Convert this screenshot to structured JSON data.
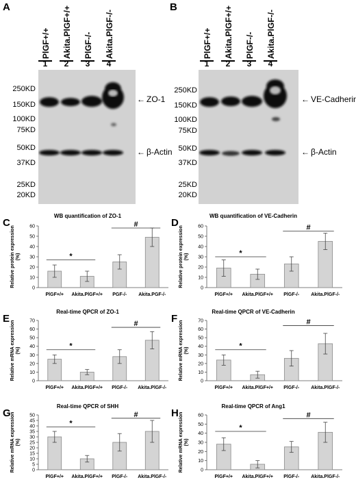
{
  "figure": {
    "blots": [
      {
        "letter": "A",
        "lanes": [
          {
            "num": "1",
            "label": "PlGF+/+"
          },
          {
            "num": "2",
            "label": "Akita.PlGF+/+"
          },
          {
            "num": "3",
            "label": "PlGF-/-"
          },
          {
            "num": "4",
            "label": "Akita.PlGF-/-"
          }
        ],
        "markers": [
          "250KD",
          "150KD",
          "100KD",
          "75KD",
          "50KD",
          "37KD",
          "25KD",
          "20KD"
        ],
        "band_labels": [
          "ZO-1",
          "β-Actin"
        ]
      },
      {
        "letter": "B",
        "lanes": [
          {
            "num": "1",
            "label": "PlGF+/+"
          },
          {
            "num": "2",
            "label": "Akita.PlGF+/+"
          },
          {
            "num": "3",
            "label": "PlGF-/-"
          },
          {
            "num": "4",
            "label": "Akita.PlGF-/-"
          }
        ],
        "markers": [
          "250KD",
          "150KD",
          "100KD",
          "75KD",
          "50KD",
          "37KD",
          "25KD",
          "20KD"
        ],
        "band_labels": [
          "VE-Cadherin",
          "β-Actin"
        ]
      }
    ]
  },
  "chart_data": [
    {
      "panel": "C",
      "type": "bar",
      "title": "WB quantification of ZO-1",
      "ylabel": "Relative protein expression (%)",
      "ylim": [
        0,
        60
      ],
      "yticks": [
        0,
        10,
        20,
        30,
        40,
        50,
        60
      ],
      "categories": [
        "PlGF+/+",
        "Akita.PlGF+/+",
        "PGF-/-",
        "Akita.PGF-/-"
      ],
      "values": [
        16,
        11,
        25,
        49
      ],
      "errors": [
        6,
        5,
        7,
        9
      ],
      "significance": [
        {
          "symbol": "*",
          "bars": [
            0,
            1
          ],
          "y": 27
        },
        {
          "symbol": "#",
          "bars": [
            2,
            3
          ],
          "y": 58
        }
      ]
    },
    {
      "panel": "D",
      "type": "bar",
      "title": "WB quantification of VE-Cadherin",
      "ylabel": "Relative protein expression (%)",
      "ylim": [
        0,
        60
      ],
      "yticks": [
        0,
        10,
        20,
        30,
        40,
        50,
        60
      ],
      "categories": [
        "PlGF+/+",
        "Akita.PlGF+/+",
        "PlGF-/-",
        "Akita.PlGF-/-"
      ],
      "values": [
        19,
        13,
        23,
        45
      ],
      "errors": [
        8,
        5,
        7,
        8
      ],
      "significance": [
        {
          "symbol": "*",
          "bars": [
            0,
            1
          ],
          "y": 30
        },
        {
          "symbol": "#",
          "bars": [
            2,
            3
          ],
          "y": 55
        }
      ]
    },
    {
      "panel": "E",
      "type": "bar",
      "title": "Real-time QPCR of ZO-1",
      "ylabel": "Relative mRNA expression (%)",
      "ylim": [
        0,
        70
      ],
      "yticks": [
        0,
        10,
        20,
        30,
        40,
        50,
        60,
        70
      ],
      "categories": [
        "PlGF+/+",
        "Akita.PlGF+/+",
        "PlGF-/-",
        "Akita.PlGF-/-"
      ],
      "values": [
        25,
        10,
        28,
        47
      ],
      "errors": [
        5,
        3,
        8,
        10
      ],
      "significance": [
        {
          "symbol": "*",
          "bars": [
            0,
            1
          ],
          "y": 36
        },
        {
          "symbol": "#",
          "bars": [
            2,
            3
          ],
          "y": 62
        }
      ]
    },
    {
      "panel": "F",
      "type": "bar",
      "title": "Real-time QPCR of VE-Cadherin",
      "ylabel": "Relative mRNA expression (%)",
      "ylim": [
        0,
        70
      ],
      "yticks": [
        0,
        10,
        20,
        30,
        40,
        50,
        60,
        70
      ],
      "categories": [
        "PlGF+/+",
        "Akita.PlGF+/+",
        "PlGF-/-",
        "Akita.PlGF-/-"
      ],
      "values": [
        24,
        7,
        26,
        43
      ],
      "errors": [
        6,
        4,
        9,
        12
      ],
      "significance": [
        {
          "symbol": "*",
          "bars": [
            0,
            1
          ],
          "y": 36
        },
        {
          "symbol": "#",
          "bars": [
            2,
            3
          ],
          "y": 64
        }
      ]
    },
    {
      "panel": "G",
      "type": "bar",
      "title": "Real-time QPCR of SHH",
      "ylabel": "Relative mRNA expression (%)",
      "ylim": [
        0,
        50
      ],
      "yticks": [
        0,
        5,
        10,
        15,
        20,
        25,
        30,
        35,
        40,
        45,
        50
      ],
      "categories": [
        "PlGF+/+",
        "Akita.PlGF+/+",
        "PlGF-/-",
        "Akita.PlGF-/-"
      ],
      "values": [
        30,
        10,
        25,
        35
      ],
      "errors": [
        5,
        3,
        8,
        10
      ],
      "significance": [
        {
          "symbol": "*",
          "bars": [
            0,
            1
          ],
          "y": 39
        },
        {
          "symbol": "#",
          "bars": [
            2,
            3
          ],
          "y": 47
        }
      ]
    },
    {
      "panel": "H",
      "type": "bar",
      "title": "Real-time QPCR of Ang1",
      "ylabel": "Relative mRNA expression (%)",
      "ylim": [
        0,
        60
      ],
      "yticks": [
        0,
        10,
        20,
        30,
        40,
        50,
        60
      ],
      "categories": [
        "PlGF+/+",
        "Akita.PlGF+/+",
        "PlGF-/-",
        "Akita.PlGF-/-"
      ],
      "values": [
        28,
        6,
        25,
        41
      ],
      "errors": [
        7,
        4,
        6,
        11
      ],
      "significance": [
        {
          "symbol": "*",
          "bars": [
            0,
            1
          ],
          "y": 42
        },
        {
          "symbol": "#",
          "bars": [
            2,
            3
          ],
          "y": 56
        }
      ]
    }
  ]
}
